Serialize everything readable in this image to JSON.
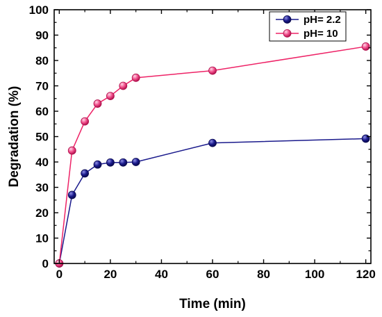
{
  "chart_data": {
    "type": "line",
    "xlabel": "Time (min)",
    "ylabel": "Degradation (%)",
    "xlim": [
      -2,
      122
    ],
    "ylim": [
      0,
      100
    ],
    "xticks": [
      0,
      20,
      40,
      60,
      80,
      100,
      120
    ],
    "yticks": [
      0,
      10,
      20,
      30,
      40,
      50,
      60,
      70,
      80,
      90,
      100
    ],
    "xtick_labels": [
      "0",
      "20",
      "40",
      "60",
      "80",
      "100",
      "120"
    ],
    "ytick_labels": [
      "0",
      "10",
      "20",
      "30",
      "40",
      "50",
      "60",
      "70",
      "80",
      "90",
      "100"
    ],
    "grid": false,
    "legend_position": "top-right",
    "x": [
      0,
      5,
      10,
      15,
      20,
      25,
      30,
      60,
      120
    ],
    "series": [
      {
        "name": "pH= 2.2",
        "color": "#1a1a8c",
        "values": [
          0,
          27,
          35.5,
          39,
          39.8,
          39.8,
          40,
          47.5,
          49.2
        ]
      },
      {
        "name": "pH= 10",
        "color": "#ee2266",
        "values": [
          0,
          44.5,
          56,
          63,
          66,
          70,
          73.2,
          76,
          85.5
        ]
      }
    ]
  }
}
